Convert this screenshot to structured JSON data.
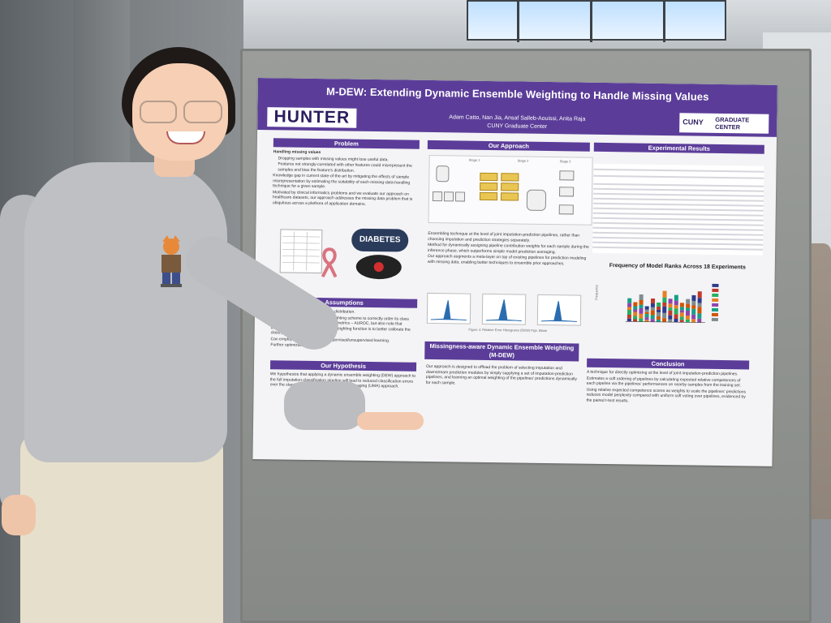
{
  "poster": {
    "title": "M-DEW: Extending Dynamic Ensemble Weighting to Handle Missing Values",
    "authors": "Adam Catto, Nan Jia, Ansaf Salleb-Aouissi, Anita Raja",
    "affiliation": "CUNY Graduate Center",
    "logo_left": "HUNTER",
    "logo_right_cuny": "CUNY",
    "logo_right_gc": "GRADUATE CENTER",
    "sections": {
      "problem": {
        "title": "Problem",
        "items": [
          "Handling missing values",
          "Dropping samples with missing values might lose useful data.",
          "Features not strongly-correlated with other features could misrepresent the samples and bias the feature's distribution.",
          "Knowledge gap in current state-of-the-art by mitigating the effects of sample misrepresentation by estimating the suitability of each missing-data-handling technique for a given sample.",
          "Motivated by clinical informatics problems and we evaluate our approach on healthcare datasets, our approach addresses the missing data problem that is ubiquitous across a plethora of application domains."
        ]
      },
      "approach": {
        "title": "Our Approach",
        "items": [
          "Ensembling technique at the level of joint imputation-prediction pipelines, rather than choosing imputation and prediction strategies separately.",
          "Method for dynamically assigning pipeline contribution weights for each sample during the inference phase, which outperforms simple model prediction averaging.",
          "Our approach augments a meta-layer on top of existing pipelines for prediction modeling with missing data, enabling better techniques to ensemble prior approaches."
        ],
        "stage_labels": [
          "Stage 1",
          "Stage 2",
          "Stage 3"
        ],
        "figure_caption": "Figure 4: Relative Error Histograms (DEW) Figs. Blank"
      },
      "assumptions": {
        "title": "Assumptions",
        "items": [
          "Make no assumption for input data distribution.",
          "Evaluate the capability of model weighting scheme to correctly order its class probability estimates using standard metrics – AUROC, but also note that another benefit of learning a model weighting function is to better calibrate the class predictions per-sample.",
          "Can employ as a top-layer over supervised/unsupervised learning.",
          "Further optimization option."
        ]
      },
      "hypothesis": {
        "title": "Our Hypothesis",
        "text": "We hypothesize that applying a dynamic ensemble weighting (DEW) approach to the full imputation-classification pipeline will lead to reduced classification errors over the standard soft voting uniform model averaging (UMA) approach."
      },
      "mdew": {
        "title": "Missingness-aware Dynamic Ensemble Weighting (M-DEW)",
        "text": "Our approach is designed to offload the problem of selecting imputation and downstream prediction modules by simply supplying a set of imputation-prediction pipelines, and learning an optimal weighting of the pipelines' predictions dynamically for each sample."
      },
      "results": {
        "title": "Experimental Results",
        "chart_title": "Frequency of Model Ranks Across 18 Experiments",
        "ylabel": "Frequency"
      },
      "conclusion": {
        "title": "Conclusion",
        "items": [
          "A technique for directly optimizing at the level of joint imputation-prediction pipelines.",
          "Estimates a soft ordering of pipelines by calculating expected relative competences of each pipeline via the pipelines' performances on nearby samples from the training set.",
          "Using relative expected competence scores as weights to scale the pipelines' predictions reduces model perplexity compared with uniform soft voting over pipelines, evidenced by the paired t-test results."
        ]
      },
      "diabetes_label": "DIABETES"
    }
  },
  "colors": {
    "poster_purple": "#5b3d99",
    "poster_bg": "#f4f3f6",
    "board_gray": "#8f928f",
    "sweater_gray": "#bfc0c4"
  },
  "icons": [
    "gear-icon",
    "awareness-ribbon-icon",
    "apple-icon",
    "spreadsheet-icon"
  ]
}
